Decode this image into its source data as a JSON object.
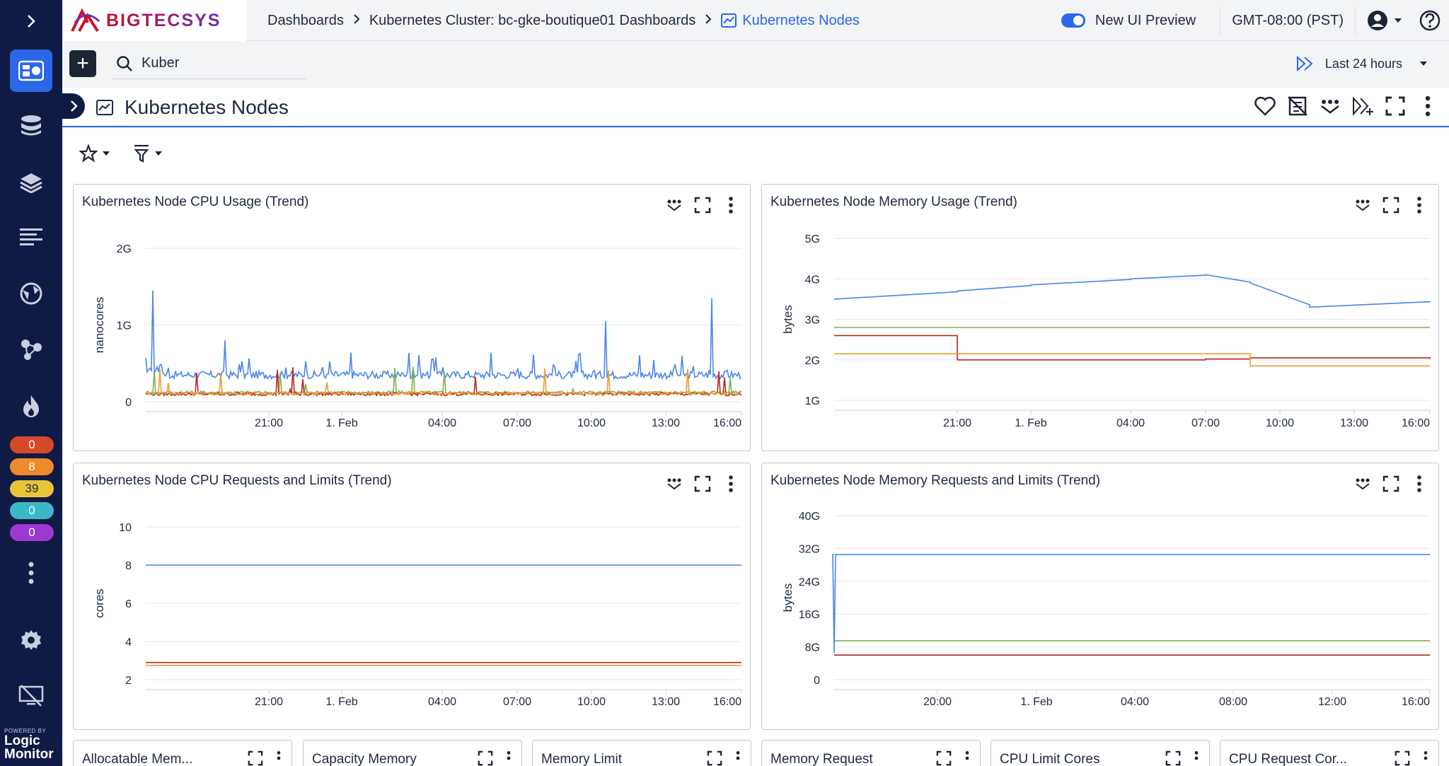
{
  "brand": {
    "name": "BIGTECSYS",
    "powered_small": "POWERED BY",
    "powered_line1": "Logic",
    "powered_line2": "Monitor"
  },
  "colors": {
    "accent": "#2b67e8",
    "nav_bg": "#0f1a45",
    "series_blue": "#4a86e8",
    "series_green": "#7fb04a",
    "series_red": "#b8261e",
    "series_orange": "#f09a2e"
  },
  "badges": [
    {
      "count": "0",
      "color": "#d64a2a"
    },
    {
      "count": "8",
      "color": "#ee8a2a"
    },
    {
      "count": "39",
      "color": "#e8c43a"
    },
    {
      "count": "0",
      "color": "#3cb7c8"
    },
    {
      "count": "0",
      "color": "#9c3ad0"
    }
  ],
  "breadcrumb": {
    "items": [
      "Dashboards",
      "Kubernetes Cluster: bc-gke-boutique01 Dashboards"
    ],
    "current": "Kubernetes Nodes"
  },
  "top": {
    "toggle_label": "New UI Preview",
    "timezone": "GMT-08:00 (PST)"
  },
  "search": {
    "value": "Kuber"
  },
  "timerange": {
    "label": "Last 24 hours"
  },
  "dashboard": {
    "title": "Kubernetes Nodes"
  },
  "widgets": [
    {
      "title": "Kubernetes Node CPU Usage (Trend)"
    },
    {
      "title": "Kubernetes Node Memory Usage (Trend)"
    },
    {
      "title": "Kubernetes Node CPU Requests and Limits (Trend)"
    },
    {
      "title": "Kubernetes Node Memory Requests and Limits (Trend)"
    }
  ],
  "mini_widgets": [
    "Allocatable Mem...",
    "Capacity Memory",
    "Memory Limit",
    "Memory Request",
    "CPU Limit Cores",
    "CPU Request Cor..."
  ],
  "chart_data": [
    {
      "type": "line",
      "title": "Kubernetes Node CPU Usage (Trend)",
      "ylabel": "nanocores",
      "yticks": [
        "0",
        "1G",
        "2G"
      ],
      "ylim": [
        0,
        2
      ],
      "xticks": [
        "21:00",
        "1. Feb",
        "04:00",
        "07:00",
        "10:00",
        "13:00",
        "16:00"
      ],
      "x": [
        0,
        1,
        2,
        3,
        4,
        5,
        6
      ],
      "series": [
        {
          "color": "#4a86e8",
          "values": [
            0.35,
            0.35,
            0.35,
            0.35,
            0.35,
            0.35,
            0.35
          ],
          "spikes": [
            [
              -1.6,
              1.45
            ],
            [
              -0.6,
              0.8
            ],
            [
              4.2,
              1.05
            ],
            [
              5.6,
              1.35
            ]
          ]
        },
        {
          "color": "#7fb04a",
          "values": [
            0.12,
            0.12,
            0.12,
            0.12,
            0.12,
            0.12,
            0.12
          ]
        },
        {
          "color": "#b8261e",
          "values": [
            0.1,
            0.1,
            0.1,
            0.1,
            0.1,
            0.1,
            0.1
          ]
        },
        {
          "color": "#f09a2e",
          "values": [
            0.11,
            0.11,
            0.11,
            0.11,
            0.11,
            0.11,
            0.11
          ]
        }
      ]
    },
    {
      "type": "line",
      "title": "Kubernetes Node Memory Usage (Trend)",
      "ylabel": "bytes",
      "yticks": [
        "1G",
        "2G",
        "3G",
        "4G",
        "5G"
      ],
      "ylim": [
        1,
        5
      ],
      "xticks": [
        "21:00",
        "1. Feb",
        "04:00",
        "07:00",
        "10:00",
        "13:00",
        "16:00"
      ],
      "x": [
        -1.6,
        0,
        1,
        2,
        3,
        3.6,
        4.4,
        6.2
      ],
      "series": [
        {
          "color": "#4a86e8",
          "values": [
            3.5,
            3.7,
            3.85,
            4.0,
            4.1,
            3.9,
            3.3,
            3.45
          ]
        },
        {
          "color": "#7fb04a",
          "values": [
            2.8,
            2.8,
            2.8,
            2.8,
            2.8,
            2.8,
            2.8,
            2.8
          ]
        },
        {
          "color": "#b8261e",
          "values": [
            2.6,
            2.0,
            2.0,
            2.0,
            2.02,
            2.05,
            2.05,
            2.02
          ]
        },
        {
          "color": "#f09a2e",
          "values": [
            2.15,
            2.15,
            2.15,
            2.15,
            2.15,
            1.85,
            1.85,
            1.85
          ]
        }
      ]
    },
    {
      "type": "line",
      "title": "Kubernetes Node CPU Requests and Limits (Trend)",
      "ylabel": "cores",
      "yticks": [
        "2",
        "4",
        "6",
        "8",
        "10"
      ],
      "ylim": [
        2,
        10
      ],
      "xticks": [
        "21:00",
        "1. Feb",
        "04:00",
        "07:00",
        "10:00",
        "13:00",
        "16:00"
      ],
      "x": [
        -1.6,
        6.2
      ],
      "series": [
        {
          "color": "#4a86e8",
          "values": [
            8,
            8
          ]
        },
        {
          "color": "#b8261e",
          "values": [
            2.9,
            2.9
          ]
        },
        {
          "color": "#f09a2e",
          "values": [
            2.75,
            2.75
          ]
        }
      ]
    },
    {
      "type": "line",
      "title": "Kubernetes Node Memory Requests and Limits (Trend)",
      "ylabel": "bytes",
      "yticks": [
        "0",
        "8G",
        "16G",
        "24G",
        "32G",
        "40G"
      ],
      "ylim": [
        0,
        40
      ],
      "xticks": [
        "20:00",
        "1. Feb",
        "04:00",
        "08:00",
        "12:00",
        "16:00"
      ],
      "x": [
        -1.8,
        6.2
      ],
      "series": [
        {
          "color": "#4a86e8",
          "values": [
            30.5,
            30.5
          ],
          "dip": [
            -1.6,
            6.5
          ]
        },
        {
          "color": "#7fb04a",
          "values": [
            9.5,
            9.5
          ]
        },
        {
          "color": "#b8261e",
          "values": [
            6.0,
            6.0
          ]
        }
      ]
    }
  ]
}
